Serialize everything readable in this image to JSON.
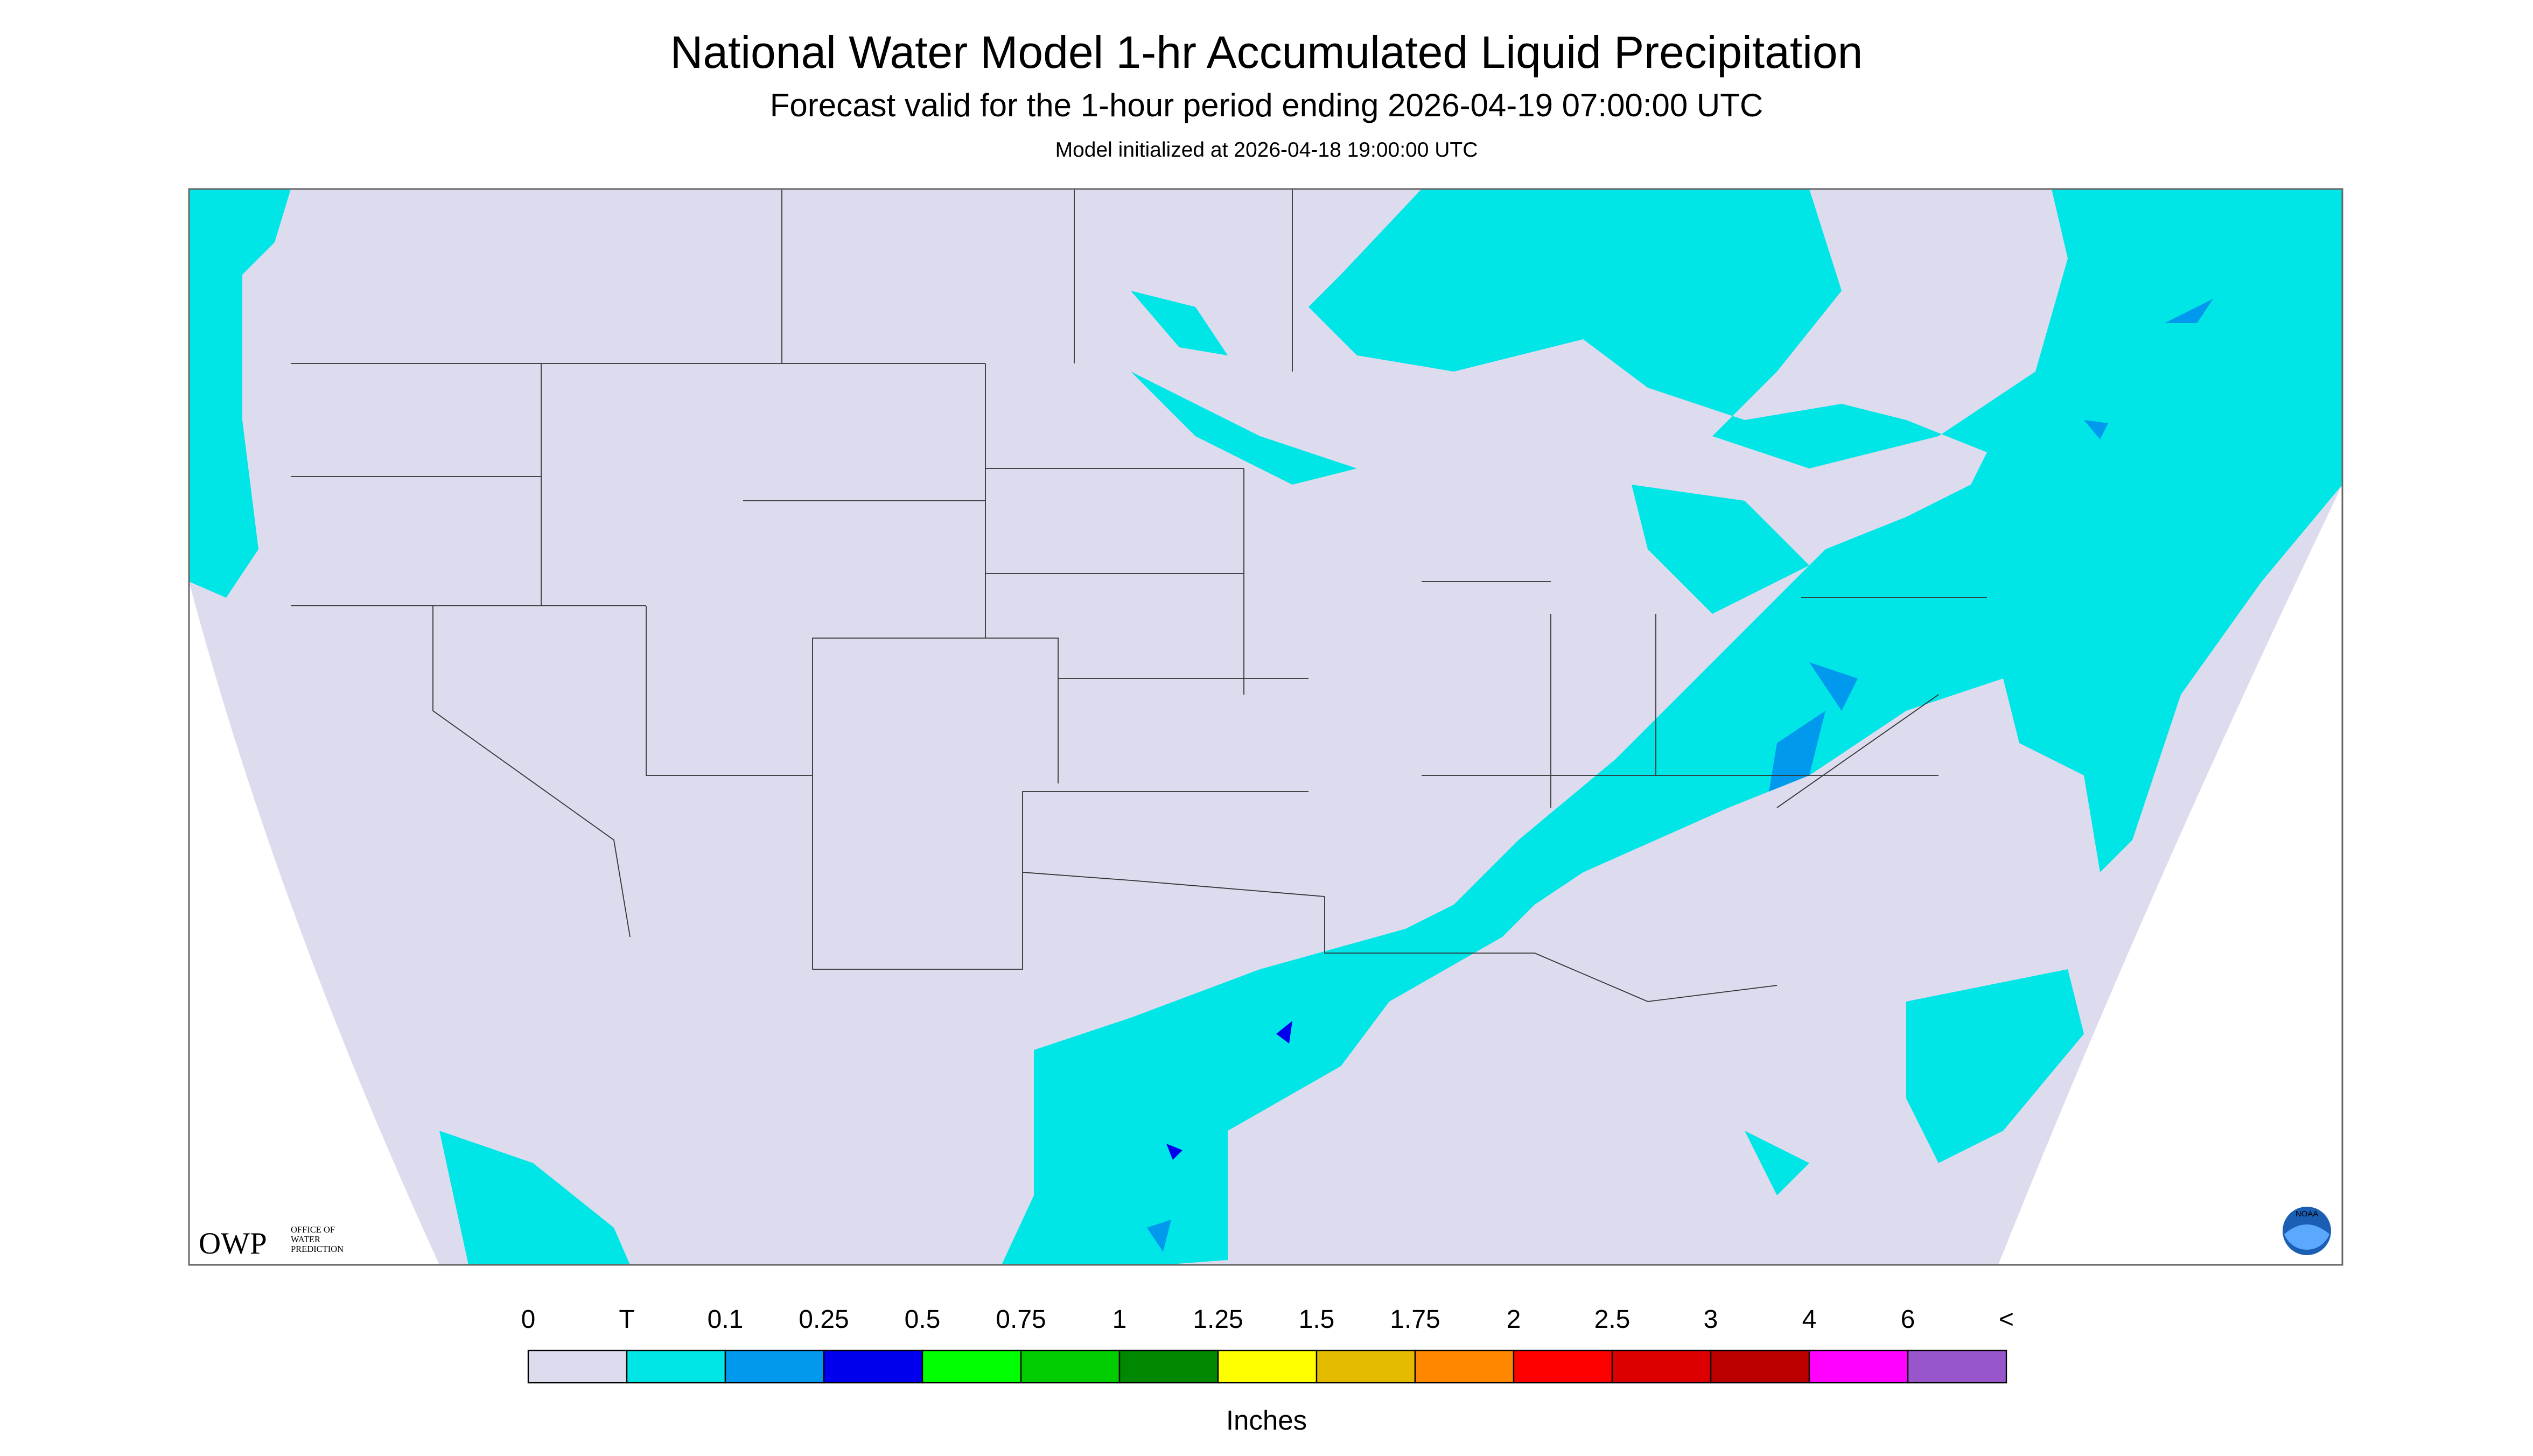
{
  "header": {
    "title": "National Water Model 1-hr Accumulated Liquid Precipitation",
    "subtitle": "Forecast valid for the 1-hour period ending 2026-04-19 07:00:00 UTC",
    "note": "Model initialized at 2026-04-18 19:00:00 UTC"
  },
  "logos": {
    "owp": "OWP",
    "owp_caption": [
      "OFFICE OF",
      "WATER",
      "PREDICTION"
    ],
    "noaa": "NOAA"
  },
  "legend": {
    "labels": [
      "0",
      "T",
      "0.1",
      "0.25",
      "0.5",
      "0.75",
      "1",
      "1.25",
      "1.5",
      "1.75",
      "2",
      "2.5",
      "3",
      "4",
      "6",
      "<"
    ],
    "colors": [
      "#dcdcee",
      "#00e5e5",
      "#0099ee",
      "#0000ee",
      "#00ff00",
      "#00cc00",
      "#008800",
      "#ffff00",
      "#e5bb00",
      "#ff8800",
      "#ff0000",
      "#dd0000",
      "#bb0000",
      "#ff00ff",
      "#9955cc"
    ],
    "unit": "Inches"
  }
}
